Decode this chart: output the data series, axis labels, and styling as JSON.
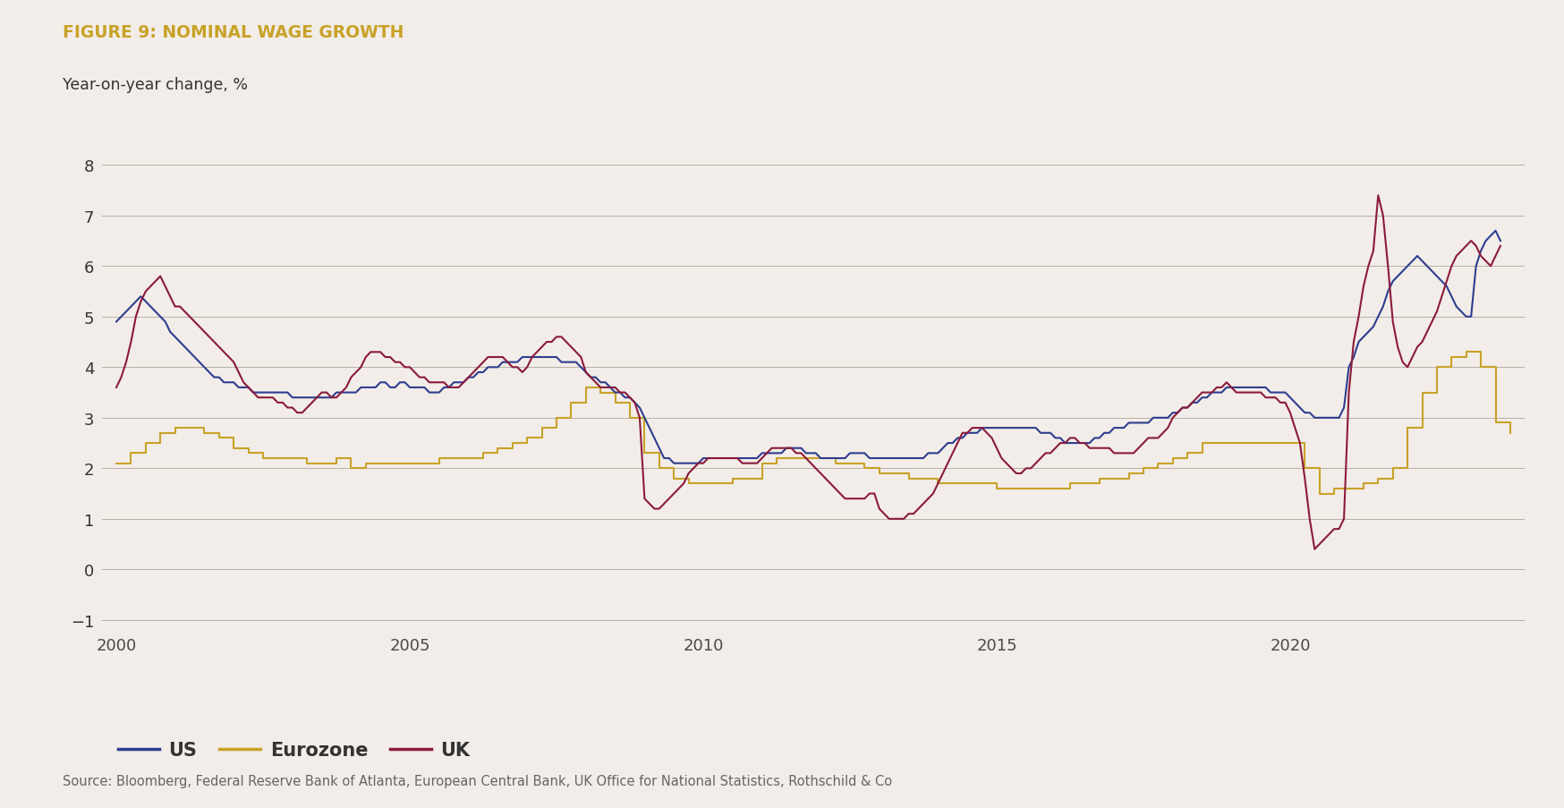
{
  "title": "FIGURE 9: NOMINAL WAGE GROWTH",
  "subtitle": "Year-on-year change, %",
  "source": "Source: Bloomberg, Federal Reserve Bank of Atlanta, European Central Bank, UK Office for National Statistics, Rothschild & Co",
  "background_color": "#f2ede8",
  "grid_color": "#b8b0a8",
  "title_color": "#c8a228",
  "ylim": [
    -1.2,
    8.4
  ],
  "yticks": [
    -1,
    0,
    1,
    2,
    3,
    4,
    5,
    6,
    7,
    8
  ],
  "colors": {
    "US": "#2e3d8f",
    "Eurozone": "#c8a228",
    "UK": "#8b1a3b"
  },
  "US_dates": [
    2000.0,
    2000.083,
    2000.167,
    2000.25,
    2000.333,
    2000.417,
    2000.5,
    2000.583,
    2000.667,
    2000.75,
    2000.833,
    2000.917,
    2001.0,
    2001.083,
    2001.167,
    2001.25,
    2001.333,
    2001.417,
    2001.5,
    2001.583,
    2001.667,
    2001.75,
    2001.833,
    2001.917,
    2002.0,
    2002.083,
    2002.167,
    2002.25,
    2002.333,
    2002.417,
    2002.5,
    2002.583,
    2002.667,
    2002.75,
    2002.833,
    2002.917,
    2003.0,
    2003.083,
    2003.167,
    2003.25,
    2003.333,
    2003.417,
    2003.5,
    2003.583,
    2003.667,
    2003.75,
    2003.833,
    2003.917,
    2004.0,
    2004.083,
    2004.167,
    2004.25,
    2004.333,
    2004.417,
    2004.5,
    2004.583,
    2004.667,
    2004.75,
    2004.833,
    2004.917,
    2005.0,
    2005.083,
    2005.167,
    2005.25,
    2005.333,
    2005.417,
    2005.5,
    2005.583,
    2005.667,
    2005.75,
    2005.833,
    2005.917,
    2006.0,
    2006.083,
    2006.167,
    2006.25,
    2006.333,
    2006.417,
    2006.5,
    2006.583,
    2006.667,
    2006.75,
    2006.833,
    2006.917,
    2007.0,
    2007.083,
    2007.167,
    2007.25,
    2007.333,
    2007.417,
    2007.5,
    2007.583,
    2007.667,
    2007.75,
    2007.833,
    2007.917,
    2008.0,
    2008.083,
    2008.167,
    2008.25,
    2008.333,
    2008.417,
    2008.5,
    2008.583,
    2008.667,
    2008.75,
    2008.833,
    2008.917,
    2009.0,
    2009.083,
    2009.167,
    2009.25,
    2009.333,
    2009.417,
    2009.5,
    2009.583,
    2009.667,
    2009.75,
    2009.833,
    2009.917,
    2010.0,
    2010.083,
    2010.167,
    2010.25,
    2010.333,
    2010.417,
    2010.5,
    2010.583,
    2010.667,
    2010.75,
    2010.833,
    2010.917,
    2011.0,
    2011.083,
    2011.167,
    2011.25,
    2011.333,
    2011.417,
    2011.5,
    2011.583,
    2011.667,
    2011.75,
    2011.833,
    2011.917,
    2012.0,
    2012.083,
    2012.167,
    2012.25,
    2012.333,
    2012.417,
    2012.5,
    2012.583,
    2012.667,
    2012.75,
    2012.833,
    2012.917,
    2013.0,
    2013.083,
    2013.167,
    2013.25,
    2013.333,
    2013.417,
    2013.5,
    2013.583,
    2013.667,
    2013.75,
    2013.833,
    2013.917,
    2014.0,
    2014.083,
    2014.167,
    2014.25,
    2014.333,
    2014.417,
    2014.5,
    2014.583,
    2014.667,
    2014.75,
    2014.833,
    2014.917,
    2015.0,
    2015.083,
    2015.167,
    2015.25,
    2015.333,
    2015.417,
    2015.5,
    2015.583,
    2015.667,
    2015.75,
    2015.833,
    2015.917,
    2016.0,
    2016.083,
    2016.167,
    2016.25,
    2016.333,
    2016.417,
    2016.5,
    2016.583,
    2016.667,
    2016.75,
    2016.833,
    2016.917,
    2017.0,
    2017.083,
    2017.167,
    2017.25,
    2017.333,
    2017.417,
    2017.5,
    2017.583,
    2017.667,
    2017.75,
    2017.833,
    2017.917,
    2018.0,
    2018.083,
    2018.167,
    2018.25,
    2018.333,
    2018.417,
    2018.5,
    2018.583,
    2018.667,
    2018.75,
    2018.833,
    2018.917,
    2019.0,
    2019.083,
    2019.167,
    2019.25,
    2019.333,
    2019.417,
    2019.5,
    2019.583,
    2019.667,
    2019.75,
    2019.833,
    2019.917,
    2020.0,
    2020.083,
    2020.167,
    2020.25,
    2020.333,
    2020.417,
    2020.5,
    2020.583,
    2020.667,
    2020.75,
    2020.833,
    2020.917,
    2021.0,
    2021.083,
    2021.167,
    2021.25,
    2021.333,
    2021.417,
    2021.5,
    2021.583,
    2021.667,
    2021.75,
    2021.833,
    2021.917,
    2022.0,
    2022.083,
    2022.167,
    2022.25,
    2022.333,
    2022.417,
    2022.5,
    2022.583,
    2022.667,
    2022.75,
    2022.833,
    2022.917,
    2023.0,
    2023.083,
    2023.167,
    2023.25,
    2023.333,
    2023.417,
    2023.5,
    2023.583
  ],
  "US_values": [
    4.9,
    5.0,
    5.1,
    5.2,
    5.3,
    5.4,
    5.3,
    5.2,
    5.1,
    5.0,
    4.9,
    4.7,
    4.6,
    4.5,
    4.4,
    4.3,
    4.2,
    4.1,
    4.0,
    3.9,
    3.8,
    3.8,
    3.7,
    3.7,
    3.7,
    3.6,
    3.6,
    3.6,
    3.5,
    3.5,
    3.5,
    3.5,
    3.5,
    3.5,
    3.5,
    3.5,
    3.4,
    3.4,
    3.4,
    3.4,
    3.4,
    3.4,
    3.4,
    3.4,
    3.4,
    3.5,
    3.5,
    3.5,
    3.5,
    3.5,
    3.6,
    3.6,
    3.6,
    3.6,
    3.7,
    3.7,
    3.6,
    3.6,
    3.7,
    3.7,
    3.6,
    3.6,
    3.6,
    3.6,
    3.5,
    3.5,
    3.5,
    3.6,
    3.6,
    3.7,
    3.7,
    3.7,
    3.8,
    3.8,
    3.9,
    3.9,
    4.0,
    4.0,
    4.0,
    4.1,
    4.1,
    4.1,
    4.1,
    4.2,
    4.2,
    4.2,
    4.2,
    4.2,
    4.2,
    4.2,
    4.2,
    4.1,
    4.1,
    4.1,
    4.1,
    4.0,
    3.9,
    3.8,
    3.8,
    3.7,
    3.7,
    3.6,
    3.5,
    3.5,
    3.4,
    3.4,
    3.3,
    3.2,
    3.0,
    2.8,
    2.6,
    2.4,
    2.2,
    2.2,
    2.1,
    2.1,
    2.1,
    2.1,
    2.1,
    2.1,
    2.2,
    2.2,
    2.2,
    2.2,
    2.2,
    2.2,
    2.2,
    2.2,
    2.2,
    2.2,
    2.2,
    2.2,
    2.3,
    2.3,
    2.3,
    2.3,
    2.3,
    2.4,
    2.4,
    2.4,
    2.4,
    2.3,
    2.3,
    2.3,
    2.2,
    2.2,
    2.2,
    2.2,
    2.2,
    2.2,
    2.3,
    2.3,
    2.3,
    2.3,
    2.2,
    2.2,
    2.2,
    2.2,
    2.2,
    2.2,
    2.2,
    2.2,
    2.2,
    2.2,
    2.2,
    2.2,
    2.3,
    2.3,
    2.3,
    2.4,
    2.5,
    2.5,
    2.6,
    2.6,
    2.7,
    2.7,
    2.7,
    2.8,
    2.8,
    2.8,
    2.8,
    2.8,
    2.8,
    2.8,
    2.8,
    2.8,
    2.8,
    2.8,
    2.8,
    2.7,
    2.7,
    2.7,
    2.6,
    2.6,
    2.5,
    2.5,
    2.5,
    2.5,
    2.5,
    2.5,
    2.6,
    2.6,
    2.7,
    2.7,
    2.8,
    2.8,
    2.8,
    2.9,
    2.9,
    2.9,
    2.9,
    2.9,
    3.0,
    3.0,
    3.0,
    3.0,
    3.1,
    3.1,
    3.2,
    3.2,
    3.3,
    3.3,
    3.4,
    3.4,
    3.5,
    3.5,
    3.5,
    3.6,
    3.6,
    3.6,
    3.6,
    3.6,
    3.6,
    3.6,
    3.6,
    3.6,
    3.5,
    3.5,
    3.5,
    3.5,
    3.4,
    3.3,
    3.2,
    3.1,
    3.1,
    3.0,
    3.0,
    3.0,
    3.0,
    3.0,
    3.0,
    3.2,
    4.0,
    4.2,
    4.5,
    4.6,
    4.7,
    4.8,
    5.0,
    5.2,
    5.5,
    5.7,
    5.8,
    5.9,
    6.0,
    6.1,
    6.2,
    6.1,
    6.0,
    5.9,
    5.8,
    5.7,
    5.6,
    5.4,
    5.2,
    5.1,
    5.0,
    5.0,
    6.0,
    6.3,
    6.5,
    6.6,
    6.7,
    6.5
  ],
  "EZ_dates": [
    2000.0,
    2000.25,
    2000.5,
    2000.75,
    2001.0,
    2001.25,
    2001.5,
    2001.75,
    2002.0,
    2002.25,
    2002.5,
    2002.75,
    2003.0,
    2003.25,
    2003.5,
    2003.75,
    2004.0,
    2004.25,
    2004.5,
    2004.75,
    2005.0,
    2005.25,
    2005.5,
    2005.75,
    2006.0,
    2006.25,
    2006.5,
    2006.75,
    2007.0,
    2007.25,
    2007.5,
    2007.75,
    2008.0,
    2008.25,
    2008.5,
    2008.75,
    2009.0,
    2009.25,
    2009.5,
    2009.75,
    2010.0,
    2010.25,
    2010.5,
    2010.75,
    2011.0,
    2011.25,
    2011.5,
    2011.75,
    2012.0,
    2012.25,
    2012.5,
    2012.75,
    2013.0,
    2013.25,
    2013.5,
    2013.75,
    2014.0,
    2014.25,
    2014.5,
    2014.75,
    2015.0,
    2015.25,
    2015.5,
    2015.75,
    2016.0,
    2016.25,
    2016.5,
    2016.75,
    2017.0,
    2017.25,
    2017.5,
    2017.75,
    2018.0,
    2018.25,
    2018.5,
    2018.75,
    2019.0,
    2019.25,
    2019.5,
    2019.75,
    2020.0,
    2020.25,
    2020.5,
    2020.75,
    2021.0,
    2021.25,
    2021.5,
    2021.75,
    2022.0,
    2022.25,
    2022.5,
    2022.75,
    2023.0,
    2023.25,
    2023.5,
    2023.75
  ],
  "EZ_values": [
    2.1,
    2.3,
    2.5,
    2.7,
    2.8,
    2.8,
    2.7,
    2.6,
    2.4,
    2.3,
    2.2,
    2.2,
    2.2,
    2.1,
    2.1,
    2.2,
    2.0,
    2.1,
    2.1,
    2.1,
    2.1,
    2.1,
    2.2,
    2.2,
    2.2,
    2.3,
    2.4,
    2.5,
    2.6,
    2.8,
    3.0,
    3.3,
    3.6,
    3.5,
    3.3,
    3.0,
    2.3,
    2.0,
    1.8,
    1.7,
    1.7,
    1.7,
    1.8,
    1.8,
    2.1,
    2.2,
    2.2,
    2.2,
    2.2,
    2.1,
    2.1,
    2.0,
    1.9,
    1.9,
    1.8,
    1.8,
    1.7,
    1.7,
    1.7,
    1.7,
    1.6,
    1.6,
    1.6,
    1.6,
    1.6,
    1.7,
    1.7,
    1.8,
    1.8,
    1.9,
    2.0,
    2.1,
    2.2,
    2.3,
    2.5,
    2.5,
    2.5,
    2.5,
    2.5,
    2.5,
    2.5,
    2.0,
    1.5,
    1.6,
    1.6,
    1.7,
    1.8,
    2.0,
    2.8,
    3.5,
    4.0,
    4.2,
    4.3,
    4.0,
    2.9,
    2.7
  ],
  "UK_dates": [
    2000.0,
    2000.083,
    2000.167,
    2000.25,
    2000.333,
    2000.417,
    2000.5,
    2000.583,
    2000.667,
    2000.75,
    2000.833,
    2000.917,
    2001.0,
    2001.083,
    2001.167,
    2001.25,
    2001.333,
    2001.417,
    2001.5,
    2001.583,
    2001.667,
    2001.75,
    2001.833,
    2001.917,
    2002.0,
    2002.083,
    2002.167,
    2002.25,
    2002.333,
    2002.417,
    2002.5,
    2002.583,
    2002.667,
    2002.75,
    2002.833,
    2002.917,
    2003.0,
    2003.083,
    2003.167,
    2003.25,
    2003.333,
    2003.417,
    2003.5,
    2003.583,
    2003.667,
    2003.75,
    2003.833,
    2003.917,
    2004.0,
    2004.083,
    2004.167,
    2004.25,
    2004.333,
    2004.417,
    2004.5,
    2004.583,
    2004.667,
    2004.75,
    2004.833,
    2004.917,
    2005.0,
    2005.083,
    2005.167,
    2005.25,
    2005.333,
    2005.417,
    2005.5,
    2005.583,
    2005.667,
    2005.75,
    2005.833,
    2005.917,
    2006.0,
    2006.083,
    2006.167,
    2006.25,
    2006.333,
    2006.417,
    2006.5,
    2006.583,
    2006.667,
    2006.75,
    2006.833,
    2006.917,
    2007.0,
    2007.083,
    2007.167,
    2007.25,
    2007.333,
    2007.417,
    2007.5,
    2007.583,
    2007.667,
    2007.75,
    2007.833,
    2007.917,
    2008.0,
    2008.083,
    2008.167,
    2008.25,
    2008.333,
    2008.417,
    2008.5,
    2008.583,
    2008.667,
    2008.75,
    2008.833,
    2008.917,
    2009.0,
    2009.083,
    2009.167,
    2009.25,
    2009.333,
    2009.417,
    2009.5,
    2009.583,
    2009.667,
    2009.75,
    2009.833,
    2009.917,
    2010.0,
    2010.083,
    2010.167,
    2010.25,
    2010.333,
    2010.417,
    2010.5,
    2010.583,
    2010.667,
    2010.75,
    2010.833,
    2010.917,
    2011.0,
    2011.083,
    2011.167,
    2011.25,
    2011.333,
    2011.417,
    2011.5,
    2011.583,
    2011.667,
    2011.75,
    2011.833,
    2011.917,
    2012.0,
    2012.083,
    2012.167,
    2012.25,
    2012.333,
    2012.417,
    2012.5,
    2012.583,
    2012.667,
    2012.75,
    2012.833,
    2012.917,
    2013.0,
    2013.083,
    2013.167,
    2013.25,
    2013.333,
    2013.417,
    2013.5,
    2013.583,
    2013.667,
    2013.75,
    2013.833,
    2013.917,
    2014.0,
    2014.083,
    2014.167,
    2014.25,
    2014.333,
    2014.417,
    2014.5,
    2014.583,
    2014.667,
    2014.75,
    2014.833,
    2014.917,
    2015.0,
    2015.083,
    2015.167,
    2015.25,
    2015.333,
    2015.417,
    2015.5,
    2015.583,
    2015.667,
    2015.75,
    2015.833,
    2015.917,
    2016.0,
    2016.083,
    2016.167,
    2016.25,
    2016.333,
    2016.417,
    2016.5,
    2016.583,
    2016.667,
    2016.75,
    2016.833,
    2016.917,
    2017.0,
    2017.083,
    2017.167,
    2017.25,
    2017.333,
    2017.417,
    2017.5,
    2017.583,
    2017.667,
    2017.75,
    2017.833,
    2017.917,
    2018.0,
    2018.083,
    2018.167,
    2018.25,
    2018.333,
    2018.417,
    2018.5,
    2018.583,
    2018.667,
    2018.75,
    2018.833,
    2018.917,
    2019.0,
    2019.083,
    2019.167,
    2019.25,
    2019.333,
    2019.417,
    2019.5,
    2019.583,
    2019.667,
    2019.75,
    2019.833,
    2019.917,
    2020.0,
    2020.083,
    2020.167,
    2020.25,
    2020.333,
    2020.417,
    2020.5,
    2020.583,
    2020.667,
    2020.75,
    2020.833,
    2020.917,
    2021.0,
    2021.083,
    2021.167,
    2021.25,
    2021.333,
    2021.417,
    2021.5,
    2021.583,
    2021.667,
    2021.75,
    2021.833,
    2021.917,
    2022.0,
    2022.083,
    2022.167,
    2022.25,
    2022.333,
    2022.417,
    2022.5,
    2022.583,
    2022.667,
    2022.75,
    2022.833,
    2022.917,
    2023.0,
    2023.083,
    2023.167,
    2023.25,
    2023.333,
    2023.417,
    2023.5,
    2023.583
  ],
  "UK_values": [
    3.6,
    3.8,
    4.1,
    4.5,
    5.0,
    5.3,
    5.5,
    5.6,
    5.7,
    5.8,
    5.6,
    5.4,
    5.2,
    5.2,
    5.1,
    5.0,
    4.9,
    4.8,
    4.7,
    4.6,
    4.5,
    4.4,
    4.3,
    4.2,
    4.1,
    3.9,
    3.7,
    3.6,
    3.5,
    3.4,
    3.4,
    3.4,
    3.4,
    3.3,
    3.3,
    3.2,
    3.2,
    3.1,
    3.1,
    3.2,
    3.3,
    3.4,
    3.5,
    3.5,
    3.4,
    3.4,
    3.5,
    3.6,
    3.8,
    3.9,
    4.0,
    4.2,
    4.3,
    4.3,
    4.3,
    4.2,
    4.2,
    4.1,
    4.1,
    4.0,
    4.0,
    3.9,
    3.8,
    3.8,
    3.7,
    3.7,
    3.7,
    3.7,
    3.6,
    3.6,
    3.6,
    3.7,
    3.8,
    3.9,
    4.0,
    4.1,
    4.2,
    4.2,
    4.2,
    4.2,
    4.1,
    4.0,
    4.0,
    3.9,
    4.0,
    4.2,
    4.3,
    4.4,
    4.5,
    4.5,
    4.6,
    4.6,
    4.5,
    4.4,
    4.3,
    4.2,
    3.9,
    3.8,
    3.7,
    3.6,
    3.6,
    3.6,
    3.6,
    3.5,
    3.5,
    3.4,
    3.3,
    3.0,
    1.4,
    1.3,
    1.2,
    1.2,
    1.3,
    1.4,
    1.5,
    1.6,
    1.7,
    1.9,
    2.0,
    2.1,
    2.1,
    2.2,
    2.2,
    2.2,
    2.2,
    2.2,
    2.2,
    2.2,
    2.1,
    2.1,
    2.1,
    2.1,
    2.2,
    2.3,
    2.4,
    2.4,
    2.4,
    2.4,
    2.4,
    2.3,
    2.3,
    2.2,
    2.1,
    2.0,
    1.9,
    1.8,
    1.7,
    1.6,
    1.5,
    1.4,
    1.4,
    1.4,
    1.4,
    1.4,
    1.5,
    1.5,
    1.2,
    1.1,
    1.0,
    1.0,
    1.0,
    1.0,
    1.1,
    1.1,
    1.2,
    1.3,
    1.4,
    1.5,
    1.7,
    1.9,
    2.1,
    2.3,
    2.5,
    2.7,
    2.7,
    2.8,
    2.8,
    2.8,
    2.7,
    2.6,
    2.4,
    2.2,
    2.1,
    2.0,
    1.9,
    1.9,
    2.0,
    2.0,
    2.1,
    2.2,
    2.3,
    2.3,
    2.4,
    2.5,
    2.5,
    2.6,
    2.6,
    2.5,
    2.5,
    2.4,
    2.4,
    2.4,
    2.4,
    2.4,
    2.3,
    2.3,
    2.3,
    2.3,
    2.3,
    2.4,
    2.5,
    2.6,
    2.6,
    2.6,
    2.7,
    2.8,
    3.0,
    3.1,
    3.2,
    3.2,
    3.3,
    3.4,
    3.5,
    3.5,
    3.5,
    3.6,
    3.6,
    3.7,
    3.6,
    3.5,
    3.5,
    3.5,
    3.5,
    3.5,
    3.5,
    3.4,
    3.4,
    3.4,
    3.3,
    3.3,
    3.1,
    2.8,
    2.5,
    1.8,
    1.0,
    0.4,
    0.5,
    0.6,
    0.7,
    0.8,
    0.8,
    1.0,
    3.5,
    4.5,
    5.0,
    5.6,
    6.0,
    6.3,
    7.4,
    7.0,
    6.0,
    4.9,
    4.4,
    4.1,
    4.0,
    4.2,
    4.4,
    4.5,
    4.7,
    4.9,
    5.1,
    5.4,
    5.7,
    6.0,
    6.2,
    6.3,
    6.4,
    6.5,
    6.4,
    6.2,
    6.1,
    6.0,
    6.2,
    6.4
  ]
}
